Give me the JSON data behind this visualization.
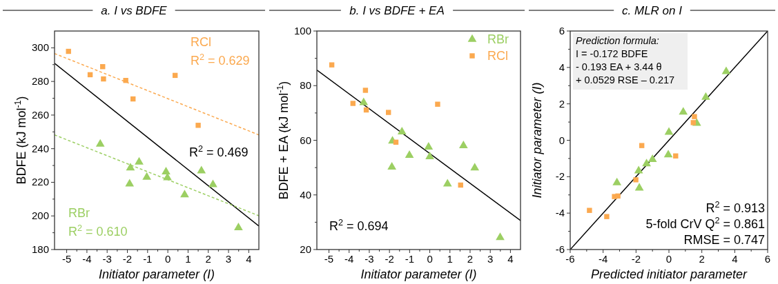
{
  "chart_data": [
    {
      "type": "scatter",
      "title": "a. I vs BDFE",
      "xlabel": "Initiator parameter (I)",
      "ylabel": "BDFE (kJ mol$^{-1}$)",
      "xlim": [
        -5.6,
        4.5
      ],
      "ylim": [
        180,
        310
      ],
      "xticks": [
        -5,
        -4,
        -3,
        -2,
        -1,
        0,
        1,
        2,
        3,
        4,
        {
          "value": -4.5,
          "label": null
        },
        {
          "value": -3.5,
          "label": null
        },
        {
          "value": -2.5,
          "label": null
        },
        {
          "value": -1.5,
          "label": null
        },
        {
          "value": -0.5,
          "label": null
        },
        {
          "value": 0.5,
          "label": null
        },
        {
          "value": 1.5,
          "label": null
        },
        {
          "value": 2.5,
          "label": null
        },
        {
          "value": 3.5,
          "label": null
        }
      ],
      "yticks": [
        180,
        200,
        220,
        240,
        260,
        280,
        300,
        {
          "value": 190,
          "label": null
        },
        {
          "value": 210,
          "label": null
        },
        {
          "value": 230,
          "label": null
        },
        {
          "value": 250,
          "label": null
        },
        {
          "value": 270,
          "label": null
        },
        {
          "value": 290,
          "label": null
        }
      ],
      "grid": false,
      "legend": false,
      "series": [
        {
          "name": "RCl",
          "color": "#fba94f",
          "marker": "square",
          "x": [
            -4.91,
            -3.84,
            -3.22,
            -3.18,
            -2.08,
            -1.72,
            0.36,
            1.5
          ],
          "values": [
            297.9,
            284,
            288.8,
            281.5,
            280.6,
            269.6,
            283.6,
            253.9
          ]
        },
        {
          "name": "RBr",
          "color": "#9ccf63",
          "marker": "triangle",
          "x": [
            -3.34,
            -1.85,
            -1.42,
            -1.89,
            -1.04,
            -0.09,
            -0.02,
            0.83,
            1.66,
            2.23,
            3.49
          ],
          "values": [
            242.7,
            228.6,
            232,
            219,
            223,
            226.2,
            222.7,
            212.6,
            226.8,
            218.6,
            193
          ]
        },
        {
          "type": "line",
          "color": "#fba94f",
          "line_style": "dashed",
          "x": [
            -5.6,
            4.5
          ],
          "values": [
            296.6,
            248.2
          ]
        },
        {
          "type": "line",
          "color": "#000000",
          "line_style": "solid",
          "x": [
            -5.6,
            4.5
          ],
          "values": [
            290.8,
            194
          ]
        },
        {
          "type": "line",
          "color": "#9ccf63",
          "line_style": "dashed",
          "x": [
            -5.6,
            4.5
          ],
          "values": [
            248.2,
            200.1
          ]
        }
      ],
      "annotations": [
        "R$^{2}$ = 0.629",
        "R$^{2}$ = 0.469",
        "R$^{2}$ = 0.610"
      ]
    },
    {
      "type": "scatter",
      "title": "b. I vs BDFE + EA",
      "xlabel": "Initiator parameter (I)",
      "ylabel": "BDFE + EA (kJ mol$^{-1}$)",
      "xlim": [
        -5.6,
        4.5
      ],
      "ylim": [
        20,
        100
      ],
      "xticks": [
        -5,
        -4,
        -3,
        -2,
        -1,
        0,
        1,
        2,
        3,
        4,
        {
          "value": -4.5,
          "label": null
        },
        {
          "value": -3.5,
          "label": null
        },
        {
          "value": -2.5,
          "label": null
        },
        {
          "value": -1.5,
          "label": null
        },
        {
          "value": -0.5,
          "label": null
        },
        {
          "value": 0.5,
          "label": null
        },
        {
          "value": 1.5,
          "label": null
        },
        {
          "value": 2.5,
          "label": null
        },
        {
          "value": 3.5,
          "label": null
        }
      ],
      "yticks": [
        20,
        40,
        60,
        80,
        100,
        {
          "value": 30,
          "label": null
        },
        {
          "value": 50,
          "label": null
        },
        {
          "value": 70,
          "label": null
        },
        {
          "value": 90,
          "label": null
        }
      ],
      "grid": false,
      "legend": "top right",
      "series": [
        {
          "name": "RBr",
          "color": "#9ccf63",
          "marker": "triangle",
          "x": [
            -3.28,
            -1.85,
            -1.38,
            -1.88,
            -1.01,
            -0.06,
            0,
            0.88,
            1.67,
            2.23,
            3.49
          ],
          "values": [
            73.8,
            59.7,
            63.1,
            50.2,
            54.5,
            57.5,
            54,
            44,
            58,
            49.9,
            24.4
          ]
        },
        {
          "name": "RCl",
          "color": "#fba94f",
          "marker": "square",
          "x": [
            -4.86,
            -3.81,
            -3.19,
            -3.15,
            -2.05,
            -1.68,
            0.39,
            1.53
          ],
          "values": [
            87.6,
            73.5,
            78.3,
            71.1,
            70.2,
            59.3,
            73.2,
            43.6
          ]
        },
        {
          "type": "line",
          "color": "#000000",
          "line_style": "solid",
          "x": [
            -5.6,
            4.5
          ],
          "values": [
            85.7,
            30.6
          ]
        }
      ],
      "annotations": [
        "R$^{2}$ = 0.694"
      ]
    },
    {
      "type": "scatter",
      "title": "c. MLR on I",
      "xlabel": "Predicted initiator parameter",
      "ylabel": "Initiator parameter (I)",
      "xlim": [
        -6,
        6
      ],
      "ylim": [
        -6,
        6
      ],
      "xticks": [
        -6,
        -4,
        -2,
        0,
        2,
        4,
        6,
        {
          "value": -5,
          "label": null
        },
        {
          "value": -3,
          "label": null
        },
        {
          "value": -1,
          "label": null
        },
        {
          "value": 1,
          "label": null
        },
        {
          "value": 3,
          "label": null
        },
        {
          "value": 5,
          "label": null
        }
      ],
      "yticks": [
        -6,
        -4,
        -2,
        0,
        2,
        4,
        6,
        {
          "value": -5,
          "label": null
        },
        {
          "value": -3,
          "label": null
        },
        {
          "value": -1,
          "label": null
        },
        {
          "value": 1,
          "label": null
        },
        {
          "value": 3,
          "label": null
        },
        {
          "value": 5,
          "label": null
        }
      ],
      "grid": false,
      "legend": false,
      "series": [
        {
          "color": "#9ccf63",
          "marker": "triangle",
          "x": [
            3.48,
            2.24,
            0.87,
            1.69,
            0,
            -0.04,
            -1,
            -1.36,
            -1.84,
            -3.16,
            -1.8
          ],
          "values": [
            3.77,
            2.36,
            1.55,
            0.93,
            0.44,
            -0.8,
            -1.05,
            -1.29,
            -1.68,
            -2.33,
            -2.62
          ]
        },
        {
          "color": "#fba94f",
          "marker": "square",
          "x": [
            1.55,
            1.48,
            -1.65,
            0.41,
            -2.01,
            -3.31,
            -3.1,
            -4.83,
            -3.78
          ],
          "values": [
            1.3,
            0.97,
            -0.29,
            -0.86,
            -2.17,
            -3.09,
            -3.06,
            -3.85,
            -4.19
          ]
        },
        {
          "type": "line",
          "color": "#000000",
          "line_style": "solid",
          "x": [
            -6,
            6
          ],
          "values": [
            -6,
            6
          ]
        }
      ],
      "annotations": [
        "Prediction formula:\nI =  -0.172 BDFE\n- 0.193 EA + 3.44 θ\n+ 0.0529 RSE – 0.217",
        "R$^{2}$ = 0.913\n5-fold CrV Q$^{2}$ = 0.861\nRMSE = 0.747"
      ]
    }
  ]
}
